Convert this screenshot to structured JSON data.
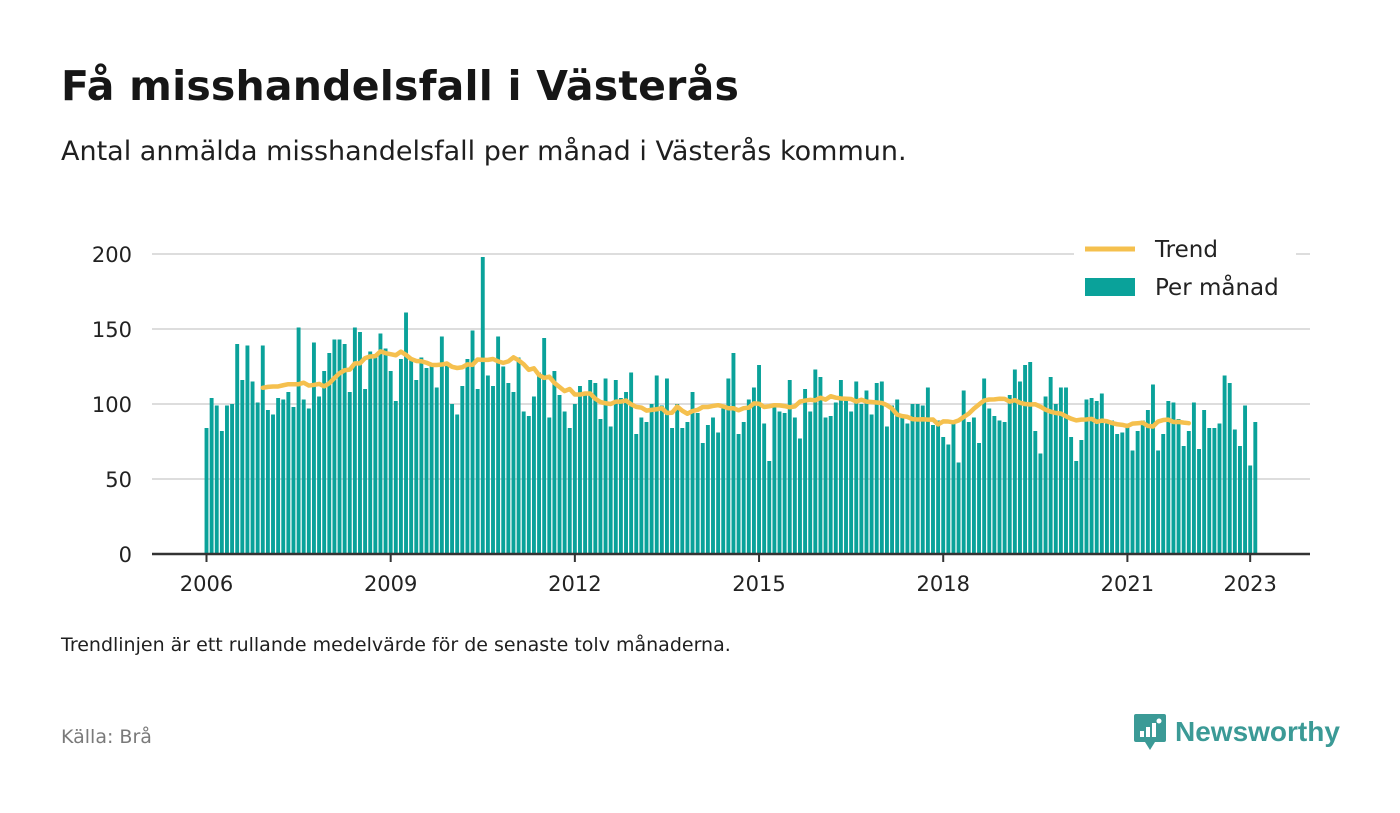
{
  "header": {
    "title": "Få misshandelsfall i Västerås",
    "subtitle": "Antal anmälda misshandelsfall per månad i Västerås kommun."
  },
  "footer": {
    "note": "Trendlinjen är ett rullande medelvärde för de senaste tolv månaderna.",
    "source": "Källa: Brå",
    "brand": "Newsworthy"
  },
  "colors": {
    "bar": "#0aa29a",
    "trend": "#f5c04e",
    "grid": "#dddddd",
    "axis": "#333333",
    "brand": "#3b9a96"
  },
  "chart_data": {
    "type": "bar",
    "x_start": "2006-01",
    "x_end": "2023-02",
    "x_ticks": [
      "2006",
      "2009",
      "2012",
      "2015",
      "2018",
      "2021",
      "2023"
    ],
    "y_ticks": [
      0,
      50,
      100,
      150,
      200
    ],
    "ylim": [
      0,
      200
    ],
    "grid": true,
    "legend_position": "top-right",
    "legend": [
      {
        "label": "Trend",
        "kind": "line"
      },
      {
        "label": "Per månad",
        "kind": "bar"
      }
    ],
    "series": [
      {
        "name": "Per månad",
        "kind": "bar",
        "values": [
          84,
          104,
          99,
          82,
          99,
          100,
          140,
          116,
          139,
          115,
          101,
          139,
          96,
          93,
          104,
          103,
          108,
          98,
          151,
          103,
          97,
          141,
          105,
          122,
          134,
          143,
          143,
          140,
          108,
          151,
          148,
          110,
          135,
          132,
          147,
          137,
          122,
          102,
          130,
          161,
          130,
          116,
          131,
          124,
          126,
          111,
          145,
          126,
          100,
          93,
          112,
          130,
          149,
          110,
          198,
          119,
          112,
          145,
          125,
          114,
          108,
          131,
          95,
          92,
          105,
          121,
          144,
          91,
          122,
          106,
          95,
          84,
          100,
          112,
          108,
          116,
          114,
          90,
          117,
          85,
          116,
          104,
          108,
          121,
          80,
          91,
          88,
          100,
          119,
          99,
          117,
          84,
          100,
          84,
          88,
          108,
          94,
          74,
          86,
          91,
          81,
          97,
          117,
          134,
          80,
          88,
          103,
          111,
          126,
          87,
          62,
          100,
          95,
          94,
          116,
          91,
          77,
          110,
          95,
          123,
          118,
          91,
          92,
          101,
          116,
          103,
          95,
          115,
          100,
          109,
          93,
          114,
          115,
          85,
          99,
          103,
          93,
          87,
          100,
          100,
          99,
          111,
          86,
          89,
          78,
          73,
          89,
          61,
          109,
          88,
          91,
          74,
          117,
          97,
          92,
          89,
          88,
          106,
          123,
          115,
          126,
          128,
          82,
          67,
          105,
          118,
          100,
          111,
          111,
          78,
          62,
          76,
          103,
          104,
          102,
          107,
          87,
          89,
          80,
          81,
          87,
          69,
          82,
          89,
          96,
          113,
          69,
          80,
          102,
          101,
          90,
          72,
          82,
          101,
          70,
          96,
          84,
          84,
          87,
          119,
          114,
          83,
          72,
          99,
          59,
          88
        ]
      },
      {
        "name": "Trend",
        "kind": "line",
        "start_index": 11,
        "values": [
          110.8,
          111.4,
          111.7,
          111.7,
          112.5,
          113.2,
          113.2,
          113.2,
          114.2,
          112.3,
          112.7,
          113.4,
          111.8,
          113.8,
          117.3,
          120.5,
          122.5,
          122.9,
          127.1,
          127.1,
          130.6,
          131.7,
          131.9,
          135.1,
          133.9,
          133.2,
          132.5,
          134.9,
          132.7,
          130.0,
          128.7,
          128.5,
          127.5,
          126.1,
          126.0,
          126.3,
          127.0,
          124.8,
          124.0,
          124.5,
          126.4,
          126.1,
          129.7,
          129.4,
          129.4,
          130.0,
          128.4,
          127.4,
          128.4,
          131.1,
          129.1,
          126.5,
          122.8,
          123.8,
          119.3,
          117.4,
          118.2,
          114.1,
          111.3,
          108.6,
          110.0,
          106.3,
          106.3,
          107.0,
          107.0,
          103.5,
          101.3,
          100.5,
          100.0,
          101.6,
          101.6,
          102.3,
          99.8,
          98.1,
          97.6,
          95.6,
          96.1,
          96.5,
          97.2,
          94.0,
          94.2,
          98.3,
          95.5,
          93.5,
          95.3,
          96.1,
          98.0,
          98.0,
          98.7,
          99.2,
          98.4,
          97.2,
          97.2,
          95.8,
          97.2,
          97.6,
          100.4,
          100.2,
          98.0,
          98.5,
          99.2,
          99.1,
          98.6,
          97.8,
          98.4,
          101.6,
          102.3,
          102.8,
          102.4,
          104.2,
          102.9,
          105.2,
          104.2,
          103.7,
          103.5,
          103.3,
          101.6,
          102.8,
          101.6,
          101.3,
          101.0,
          100.7,
          99.2,
          96.9,
          92.9,
          91.9,
          91.4,
          89.9,
          89.7,
          89.8,
          89.6,
          89.7,
          86.4,
          88.4,
          88.3,
          87.8,
          89.0,
          91.3,
          93.6,
          96.9,
          99.7,
          102.3,
          103.0,
          103.1,
          103.5,
          103.4,
          101.6,
          102.6,
          100.8,
          100.0,
          99.7,
          99.8,
          98.2,
          96.2,
          94.9,
          94.0,
          93.6,
          91.8,
          90.2,
          89.1,
          89.6,
          89.7,
          90.1,
          88.1,
          88.9,
          88.5,
          87.3,
          86.5,
          86.1,
          85.3,
          86.9,
          87.2,
          87.5,
          85.4,
          85.0,
          88.3,
          89.3,
          89.6,
          88.0,
          88.1,
          87.6,
          87.2
        ]
      }
    ]
  }
}
